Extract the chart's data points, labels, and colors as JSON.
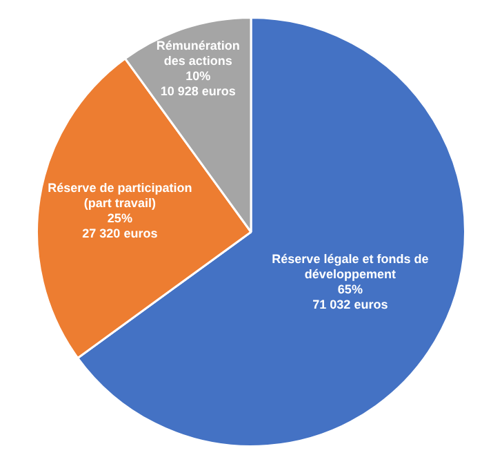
{
  "chart_data": {
    "type": "pie",
    "categories": [
      "Réserve légale et fonds de développement",
      "Réserve de participation (part travail)",
      "Rémunération des actions"
    ],
    "values": [
      71032,
      27320,
      10928
    ],
    "colors": [
      "#4472c4",
      "#ed7d31",
      "#a5a5a5"
    ],
    "value_labels": [
      "65%\n71 032 euros",
      "25%\n27 320 euros",
      "10%\n10 928 euros"
    ],
    "legend": false
  }
}
